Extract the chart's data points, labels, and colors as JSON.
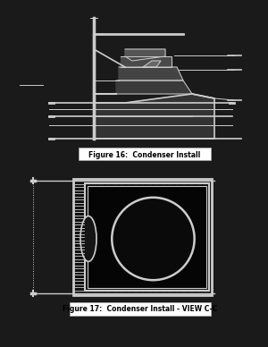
{
  "background_color": "#1a1a1a",
  "fig_width": 3.0,
  "fig_height": 3.88,
  "fig16_caption": "Figure 16:  Condenser Install",
  "fig17_caption": "Figure 17:  Condenser Install - VIEW C-C",
  "caption_fontsize": 5.5,
  "caption_bg": "#ffffff",
  "caption_text_color": "#000000",
  "draw_color": "#1a1a1a",
  "line_color": "#2a2a2a"
}
